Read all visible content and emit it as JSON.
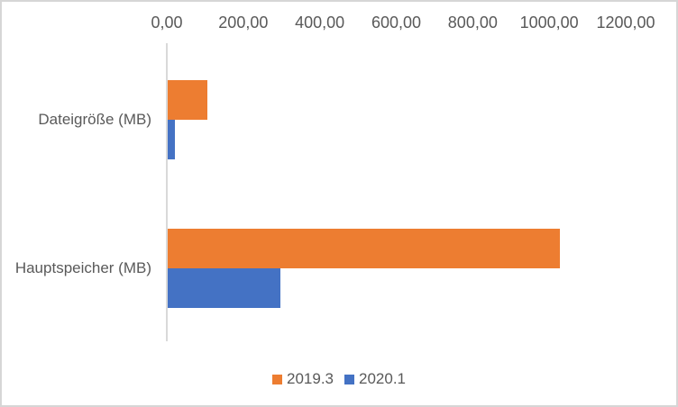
{
  "chart_data": {
    "type": "bar",
    "orientation": "horizontal",
    "title": "",
    "xlabel": "",
    "ylabel": "",
    "categories": [
      "Dateigröße (MB)",
      "Hauptspeicher (MB)"
    ],
    "series": [
      {
        "name": "2019.3",
        "color": "#ED7D31",
        "values": [
          104,
          1025
        ]
      },
      {
        "name": "2020.1",
        "color": "#4472C4",
        "values": [
          19,
          295
        ]
      }
    ],
    "xlim": [
      0,
      1200
    ],
    "x_tick_labels": [
      "0,00",
      "200,00",
      "400,00",
      "600,00",
      "800,00",
      "1000,00",
      "1200,00"
    ],
    "x_axis_position": "top",
    "number_format": "german-decimal-comma",
    "grid": false,
    "legend_position": "bottom-center",
    "styles": {
      "bar_color_2019_3": "#ED7D31",
      "bar_color_2020_1": "#4472C4",
      "axis_line_color": "#D9D9D9",
      "text_color": "#595959",
      "border_color": "#D6D6D6",
      "background": "#FFFFFF"
    }
  }
}
